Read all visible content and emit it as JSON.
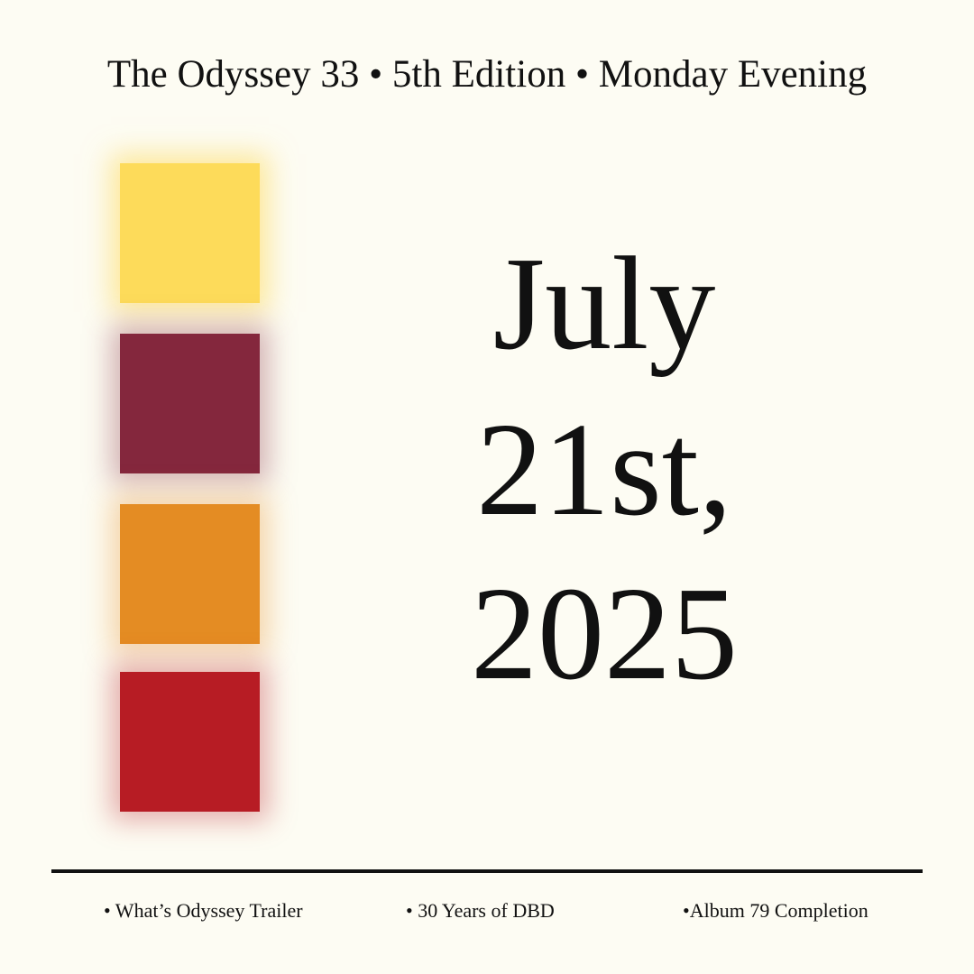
{
  "header": {
    "title": "The Odyssey 33 • 5th Edition • Monday Evening"
  },
  "date": {
    "lines": [
      "July",
      "21st,",
      "2025"
    ]
  },
  "footer": {
    "items": [
      "• What’s Odyssey Trailer",
      "• 30 Years of DBD",
      "•Album 79 Completion"
    ]
  }
}
